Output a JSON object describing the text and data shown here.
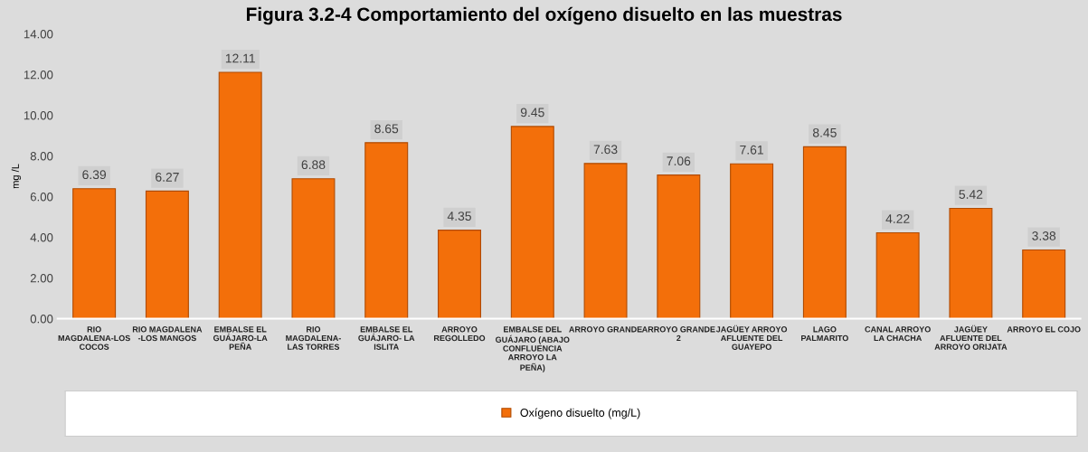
{
  "chart_data": {
    "type": "bar",
    "title": "Figura 3.2-4 Comportamiento del oxígeno disuelto en las muestras",
    "ylabel": "mg /L",
    "categories": [
      "RIO\nMAGDALENA-LOS\nCOCOS",
      "RIO MAGDALENA\n-LOS MANGOS",
      "EMBALSE EL\nGUÁJARO-LA\nPEÑA",
      "RIO\nMAGDALENA-\nLAS TORRES",
      "EMBALSE EL\nGUÁJARO- LA\nISLITA",
      "ARROYO\nREGOLLEDO",
      "EMBALSE DEL\nGUÁJARO (ABAJO\nCONFLUENCIA\nARROYO LA\nPEÑA)",
      "ARROYO GRANDE",
      "ARROYO GRANDE\n2",
      "JAGÜEY ARROYO\nAFLUENTE DEL\nGUAYEPO",
      "LAGO\nPALMARITO",
      "CANAL ARROYO\nLA CHACHA",
      "JAGÜEY\nAFLUENTE DEL\nARROYO ORIJATA",
      "ARROYO EL COJO"
    ],
    "series": [
      {
        "name": "Oxígeno disuelto (mg/L)",
        "color": "#f36f0a",
        "values": [
          6.39,
          6.27,
          12.11,
          6.88,
          8.65,
          4.35,
          9.45,
          7.63,
          7.06,
          7.61,
          8.45,
          4.22,
          5.42,
          3.38
        ]
      }
    ],
    "ylim": [
      0,
      14
    ],
    "yticks": [
      {
        "value": 0,
        "label": "0.00"
      },
      {
        "value": 2,
        "label": "2.00"
      },
      {
        "value": 4,
        "label": "4.00"
      },
      {
        "value": 6,
        "label": "6.00"
      },
      {
        "value": 8,
        "label": "8.00"
      },
      {
        "value": 10,
        "label": "10.00"
      },
      {
        "value": 12,
        "label": "12.00"
      },
      {
        "value": 14,
        "label": "14.00"
      }
    ],
    "data_labels": true,
    "legend": "bottom",
    "grid": false
  }
}
